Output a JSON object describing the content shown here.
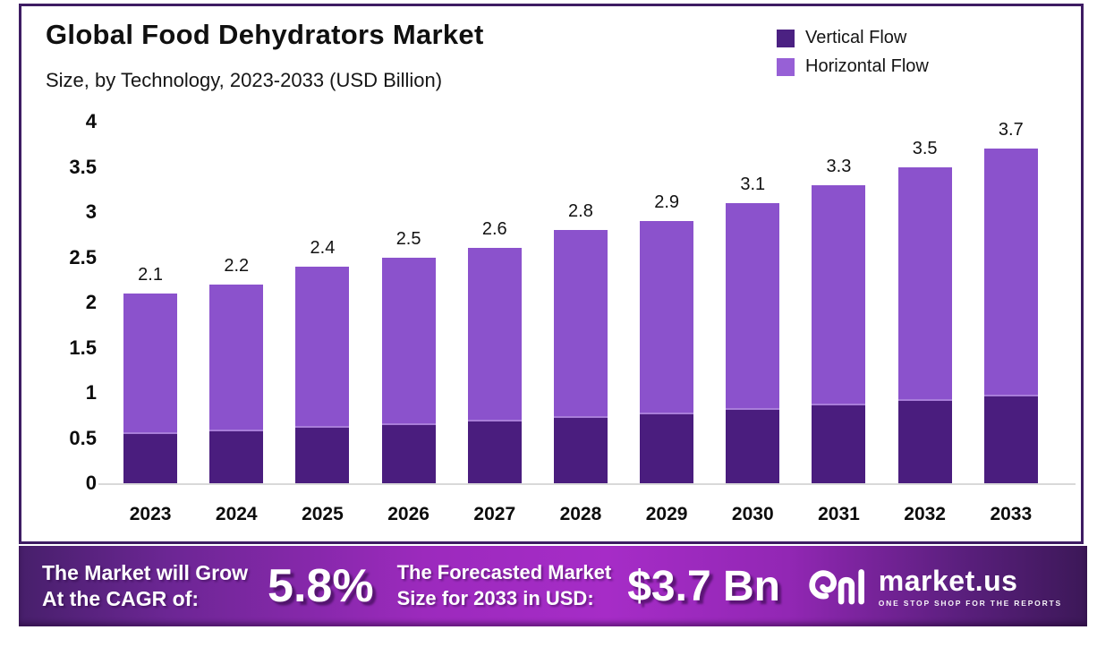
{
  "header": {
    "title": "Global Food Dehydrators Market",
    "subtitle": "Size, by Technology, 2023-2033 (USD Billion)"
  },
  "legend": {
    "items": [
      {
        "label": "Vertical Flow",
        "color": "#4B2182"
      },
      {
        "label": "Horizontal Flow",
        "color": "#9760D6"
      }
    ]
  },
  "chart_data": {
    "type": "bar",
    "stacked": true,
    "title": "Global Food Dehydrators Market",
    "subtitle": "Size, by Technology, 2023-2033 (USD Billion)",
    "categories": [
      "2023",
      "2024",
      "2025",
      "2026",
      "2027",
      "2028",
      "2029",
      "2030",
      "2031",
      "2032",
      "2033"
    ],
    "series": [
      {
        "name": "Vertical Flow",
        "color": "#4A1D7E",
        "values": [
          0.54,
          0.57,
          0.61,
          0.64,
          0.68,
          0.72,
          0.76,
          0.81,
          0.86,
          0.91,
          0.96
        ]
      },
      {
        "name": "Horizontal Flow",
        "color": "#8B52CC",
        "values": [
          1.56,
          1.63,
          1.79,
          1.86,
          1.92,
          2.08,
          2.14,
          2.29,
          2.44,
          2.59,
          2.74
        ]
      }
    ],
    "totals_labels": [
      "2.1",
      "2.2",
      "2.4",
      "2.5",
      "2.6",
      "2.8",
      "2.9",
      "3.1",
      "3.3",
      "3.5",
      "3.7"
    ],
    "xlabel": "",
    "ylabel": "",
    "ylim": [
      0,
      4
    ],
    "yticks": [
      "0",
      "0.5",
      "1",
      "1.5",
      "2",
      "2.5",
      "3",
      "3.5",
      "4"
    ],
    "grid": false,
    "legend_position": "top-right"
  },
  "banner": {
    "cagr_label_line1": "The Market will Grow",
    "cagr_label_line2": "At the CAGR of:",
    "cagr_value": "5.8%",
    "forecast_label_line1": "The Forecasted Market",
    "forecast_label_line2": "Size for 2033 in USD:",
    "forecast_value": "$3.7 Bn"
  },
  "logo": {
    "name": "market.us",
    "tagline": "ONE STOP SHOP FOR THE REPORTS"
  },
  "colors": {
    "border": "#3E1C63",
    "vertical_flow": "#4A1D7E",
    "horizontal_flow": "#8B52CC",
    "banner_center": "#A62CC7",
    "banner_edge": "#3C1858",
    "baseline": "#D9D9D9",
    "text": "#101010"
  }
}
